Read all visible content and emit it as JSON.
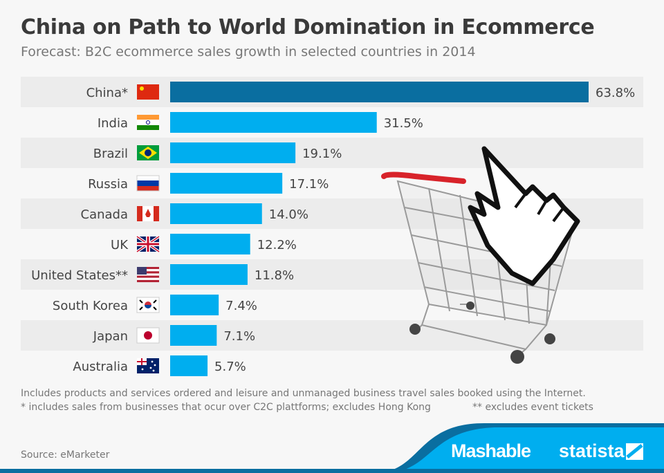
{
  "title": "China on Path to World Domination in Ecommerce",
  "subtitle": "Forecast: B2C ecommerce sales growth in selected countries in 2014",
  "chart_data": {
    "type": "bar",
    "orientation": "horizontal",
    "title": "China on Path to World Domination in Ecommerce",
    "subtitle": "Forecast: B2C ecommerce sales growth in selected countries in 2014",
    "categories": [
      "China*",
      "India",
      "Brazil",
      "Russia",
      "Canada",
      "UK",
      "United States**",
      "South Korea",
      "Japan",
      "Australia"
    ],
    "values": [
      63.8,
      31.5,
      19.1,
      17.1,
      14.0,
      12.2,
      11.8,
      7.4,
      7.1,
      5.7
    ],
    "labels": [
      "63.8%",
      "31.5%",
      "19.1%",
      "17.1%",
      "14.0%",
      "12.2%",
      "11.8%",
      "7.4%",
      "7.1%",
      "5.7%"
    ],
    "unit": "%",
    "xlim": [
      0,
      63.8
    ],
    "highlight_color": "#0a6ea0",
    "bar_color": "#00aeef",
    "flags": [
      "china-flag",
      "india-flag",
      "brazil-flag",
      "russia-flag",
      "canada-flag",
      "uk-flag",
      "us-flag",
      "south-korea-flag",
      "japan-flag",
      "australia-flag"
    ]
  },
  "notes": {
    "line1": "Includes products and services ordered and leisure and unmanaged business travel sales booked using the Internet.",
    "line2": "* includes sales from businesses that ocur over C2C plattforms; excludes Hong Kong",
    "line3": "** excludes event tickets"
  },
  "source": "Source: eMarketer",
  "brands": {
    "mashable": "Mashable",
    "statista": "statista"
  }
}
